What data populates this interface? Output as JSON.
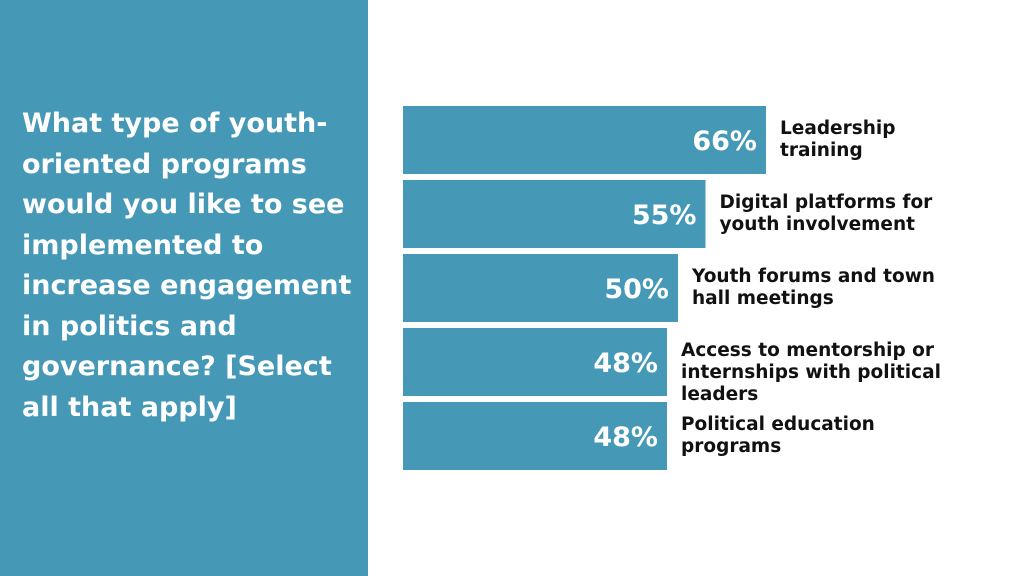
{
  "question": "What type of youth-oriented programs would you like to see implemented to increase engagement in politics and governance? [Select all that apply]",
  "colors": {
    "panel": "#4599b6",
    "bar": "#4599b6",
    "text_dark": "#111111",
    "text_light": "#ffffff"
  },
  "chart_data": {
    "type": "bar",
    "orientation": "horizontal",
    "categories": [
      "Leadership training",
      "Digital platforms for youth involvement",
      "Youth forums and town hall meetings",
      "Access to mentorship or internships with political leaders",
      "Political education programs"
    ],
    "label_lines": [
      [
        "Leadership",
        "training"
      ],
      [
        "Digital platforms for",
        "youth involvement"
      ],
      [
        "Youth forums and town",
        "hall meetings"
      ],
      [
        "Access to mentorship or",
        "internships with political leaders"
      ],
      [
        "Political education",
        "programs"
      ]
    ],
    "values": [
      66,
      55,
      50,
      48,
      48
    ],
    "value_labels": [
      "66%",
      "55%",
      "50%",
      "48%",
      "48%"
    ],
    "unit": "%",
    "grid": false,
    "legend": "none"
  }
}
